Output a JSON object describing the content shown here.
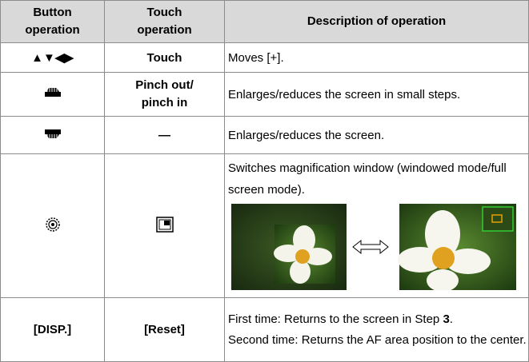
{
  "table": {
    "header": [
      "Button operation",
      "Touch operation",
      "Description of operation"
    ],
    "rows": [
      {
        "button": "▲▼◀▶",
        "touch": "Touch",
        "description": "Moves [+]."
      },
      {
        "touch": "Pinch out/ pinch in",
        "description": "Enlarges/reduces the screen in small steps."
      },
      {
        "touch": "—",
        "description": "Enlarges/reduces the screen."
      },
      {
        "description": "Switches magnification window (windowed mode/full screen mode)."
      },
      {
        "button": "[DISP.]",
        "touch": "[Reset]",
        "description_parts": [
          "First time: Returns to the screen in Step ",
          "3",
          "."
        ],
        "description_line2": "Second time: Returns the AF area position to the center."
      }
    ]
  }
}
